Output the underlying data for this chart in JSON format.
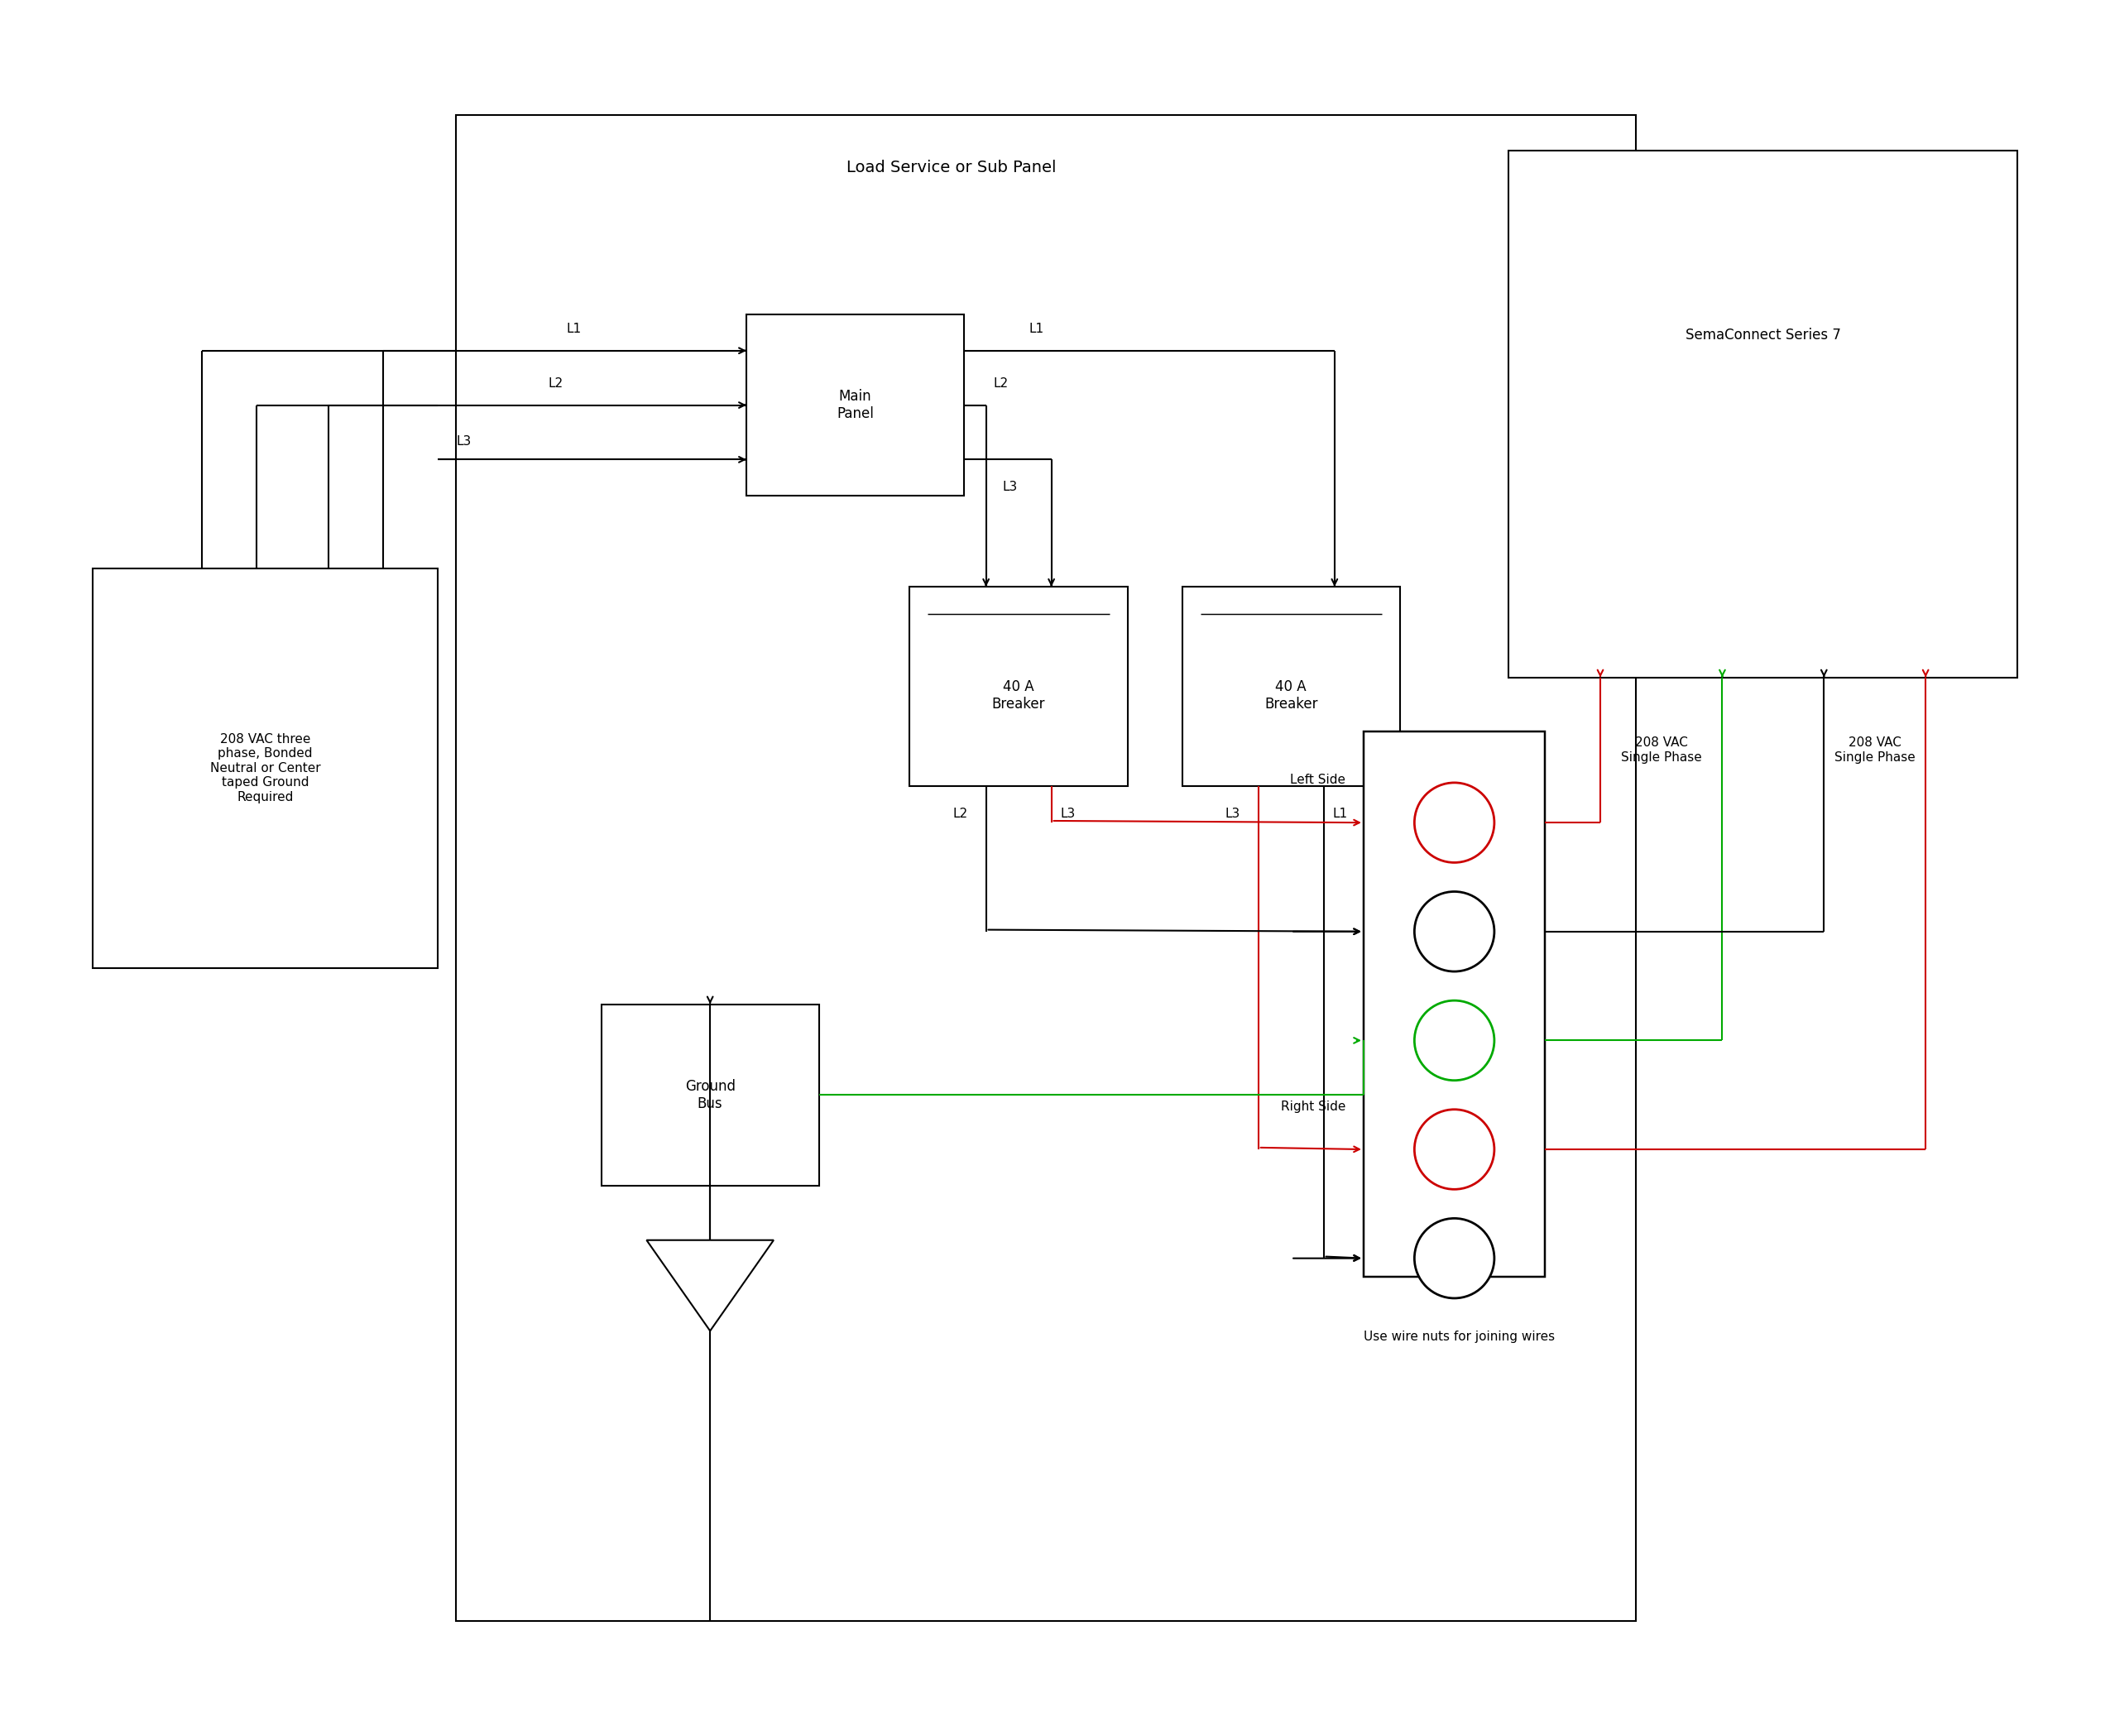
{
  "bg_color": "#ffffff",
  "line_color": "#000000",
  "red_color": "#cc0000",
  "green_color": "#00aa00",
  "fig_width": 25.5,
  "fig_height": 20.98,
  "title": "Load Service or Sub Panel",
  "sema_title": "SemaConnect Series 7",
  "source_label": "208 VAC three\nphase, Bonded\nNeutral or Center\ntaped Ground\nRequired",
  "ground_label": "Ground\nBus",
  "left_breaker_label": "40 A\nBreaker",
  "right_breaker_label": "40 A\nBreaker",
  "main_panel_label": "Main\nPanel",
  "left_side_label": "Left Side",
  "right_side_label": "Right Side",
  "note_label": "Use wire nuts for joining wires",
  "vac_left_label": "208 VAC\nSingle Phase",
  "vac_right_label": "208 VAC\nSingle Phase",
  "lw": 1.5,
  "fontsize_large": 14,
  "fontsize_med": 12,
  "fontsize_small": 11,
  "fontsize_label": 10
}
